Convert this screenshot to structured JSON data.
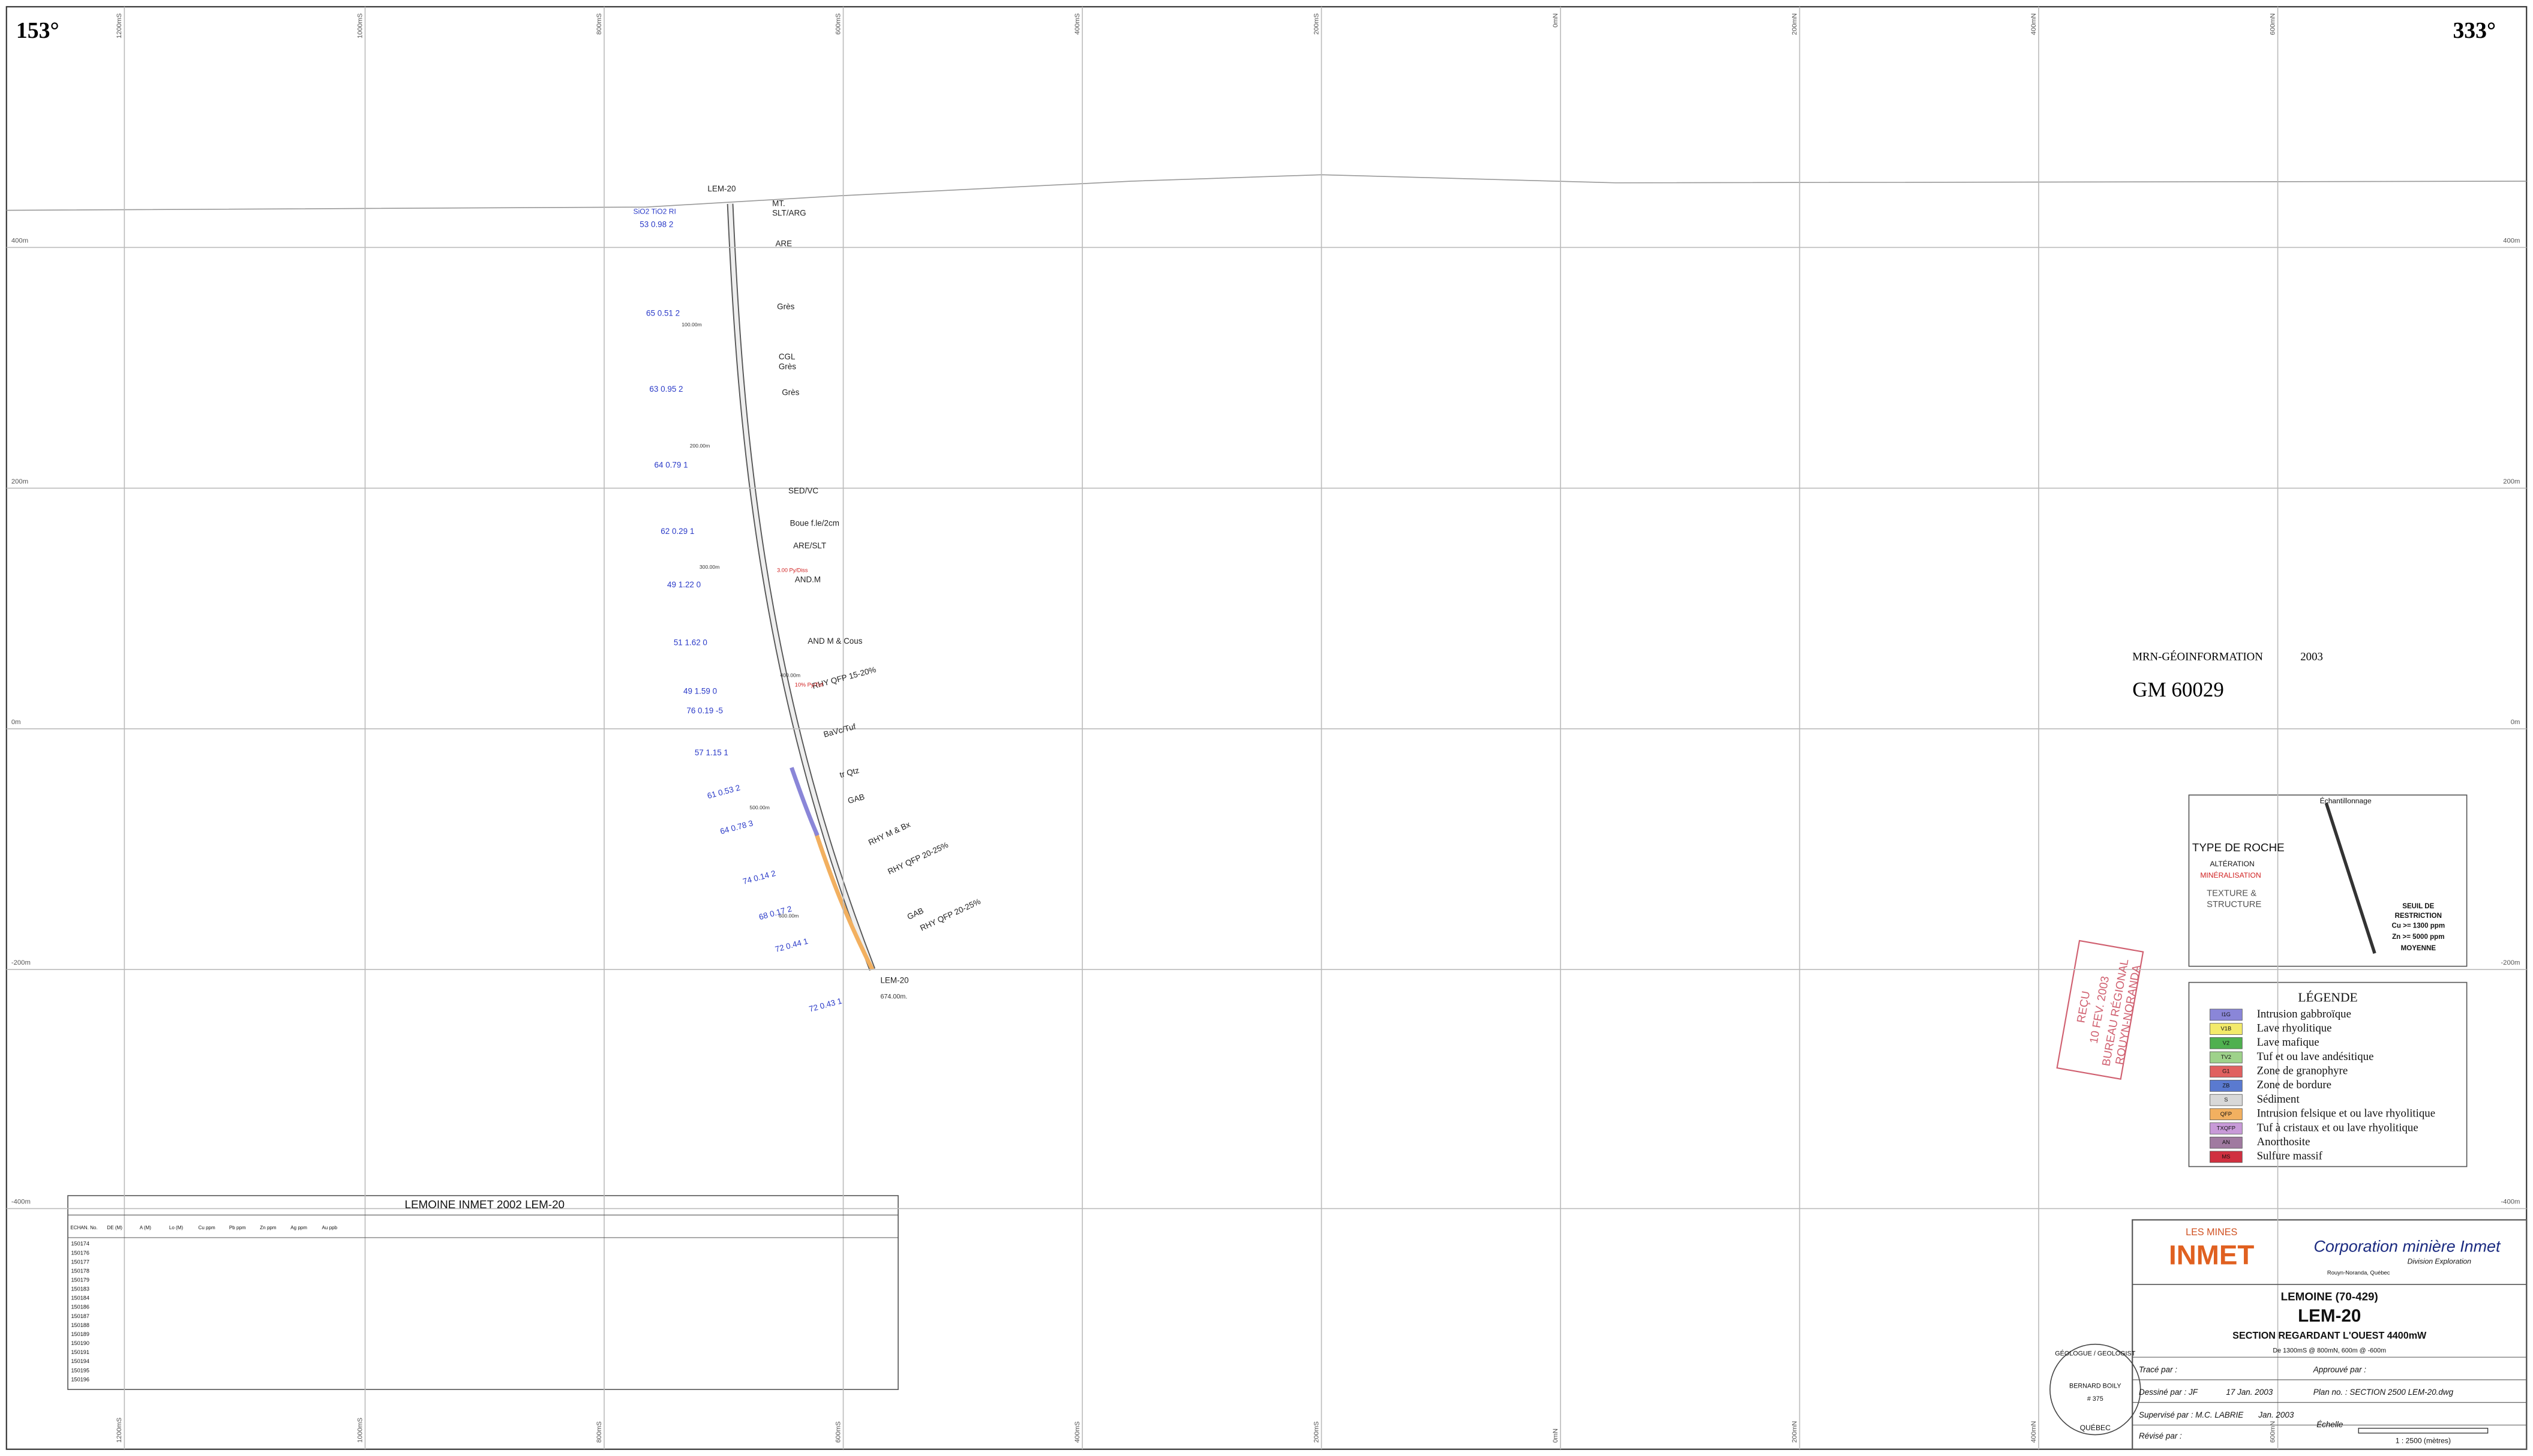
{
  "corners": {
    "left": "153°",
    "right": "333°"
  },
  "grid": {
    "x_labels": [
      "1200mS",
      "1000mS",
      "800mS",
      "600mS",
      "400mS",
      "200mS",
      "0mN",
      "200mN",
      "400mN",
      "600mN"
    ],
    "y_labels": [
      "400m",
      "200m",
      "0m",
      "-200m",
      "-400m"
    ]
  },
  "hole": {
    "name": "LEM-20",
    "depth": "674.00m.",
    "header": "SiO2  TiO2  RI",
    "depths": [
      "100.00m",
      "200.00m",
      "300.00m",
      "400.00m",
      "500.00m",
      "600.00m"
    ],
    "lithology": [
      "MT.",
      "SLT/ARG",
      "ARE",
      "Grès",
      "CGL",
      "Grès",
      "Grès",
      "SED/VC",
      "Boue f.le/2cm",
      "ARE/SLT",
      "AND.M",
      "AND M & Cous",
      "RHY QFP 15-20%",
      "BaVc/Tuf",
      "tr Qtz",
      "GAB",
      "RHY M & Bx",
      "RHY QFP 20-25%",
      "GAB",
      "RHY QFP 20-25%"
    ],
    "notes": [
      "3.00 Py/Diss",
      "10% Py/Tuf"
    ],
    "assays": [
      "53  0.98  2",
      "65  0.51  2",
      "63  0.95  2",
      "64  0.79  1",
      "62  0.29  1",
      "49  1.22  0",
      "51  1.62  0",
      "49  1.59  0",
      "76  0.19  -5",
      "57  1.15  1",
      "61  0.53  2",
      "64  0.78  3",
      "74  0.14  2",
      "68  0.17  2",
      "72  0.44  1",
      "72  0.43  1"
    ]
  },
  "mrn": {
    "name": "MRN-GÉOINFORMATION",
    "year": "2003",
    "number": "GM 60029"
  },
  "key": {
    "sampling": "Échantillonnage",
    "rock": "TYPE DE ROCHE",
    "alteration": "ALTÉRATION",
    "mineral": "MINÉRALISATION",
    "texture": "TEXTURE &",
    "structure": "STRUCTURE",
    "seuil": "SEUIL DE",
    "restriction": "RESTRICTION",
    "cu": "Cu >= 1300 ppm",
    "zn": "Zn >= 5000 ppm",
    "moyenne": "MOYENNE"
  },
  "legend": {
    "title": "LÉGENDE",
    "items": [
      {
        "code": "I1G",
        "label": "Intrusion gabbroïque",
        "color": "#8a86d8"
      },
      {
        "code": "V1B",
        "label": "Lave rhyolitique",
        "color": "#f3ea6a"
      },
      {
        "code": "V2",
        "label": "Lave mafique",
        "color": "#4fb04f"
      },
      {
        "code": "TV2",
        "label": "Tuf et ou lave andésitique",
        "color": "#9ed28a"
      },
      {
        "code": "G1",
        "label": "Zone de granophyre",
        "color": "#e06060"
      },
      {
        "code": "ZB",
        "label": "Zone de bordure",
        "color": "#5a7ad0"
      },
      {
        "code": "S",
        "label": "Sédiment",
        "color": "#d8d8d8"
      },
      {
        "code": "QFP",
        "label": "Intrusion felsique et ou lave rhyolitique",
        "color": "#f2b060"
      },
      {
        "code": "TXQFP",
        "label": "Tuf à cristaux et ou lave rhyolitique",
        "color": "#c89ad8"
      },
      {
        "code": "AN",
        "label": "Anorthosite",
        "color": "#a07aa0"
      },
      {
        "code": "MS",
        "label": "Sulfure massif",
        "color": "#d03040"
      }
    ]
  },
  "table": {
    "title": "LEMOINE INMET 2002      LEM-20",
    "headers": [
      "ECHAN. No.",
      "DE (M)",
      "A (M)",
      "Lo (M)",
      "Cu ppm",
      "Pb ppm",
      "Zn ppm",
      "Ag ppm",
      "Au ppb"
    ],
    "samples": [
      "150174",
      "150176",
      "150177",
      "150178",
      "150179",
      "150183",
      "150184",
      "150186",
      "150187",
      "150188",
      "150189",
      "150190",
      "150191",
      "150194",
      "150195",
      "150196"
    ]
  },
  "stamp": {
    "received": "REÇU",
    "date": "10 FEV. 2003",
    "office": "BUREAU RÉGIONAL",
    "city": "ROUYN-NORANDA"
  },
  "title_block": {
    "company_small": "LES MINES",
    "company": "INMET",
    "corp": "Corporation minière Inmet",
    "division": "Division Exploration",
    "city": "Rouyn-Noranda, Québec",
    "project": "LEMOINE (70-429)",
    "hole": "LEM-20",
    "section": "SECTION REGARDANT L'OUEST 4400mW",
    "extent": "De 1300mS @ 800mN, 600m @ -600m",
    "traced": "Tracé par :",
    "approved": "Approuvé par :",
    "drawn": "Dessiné par : JF",
    "drawn_date": "17 Jan. 2003",
    "plan": "Plan no. : SECTION 2500 LEM-20.dwg",
    "supervised": "Supervisé par : M.C. LABRIE",
    "sup_date": "Jan. 2003",
    "revised": "Révisé par :",
    "scale_label": "Échelle",
    "scale": "1 : 2500  (mètres)",
    "seal_top": "GÉOLOGUE / GEOLOGIST",
    "seal_name": "BERNARD BOILY",
    "seal_no": "# 375",
    "seal_bottom": "QUÉBEC"
  }
}
